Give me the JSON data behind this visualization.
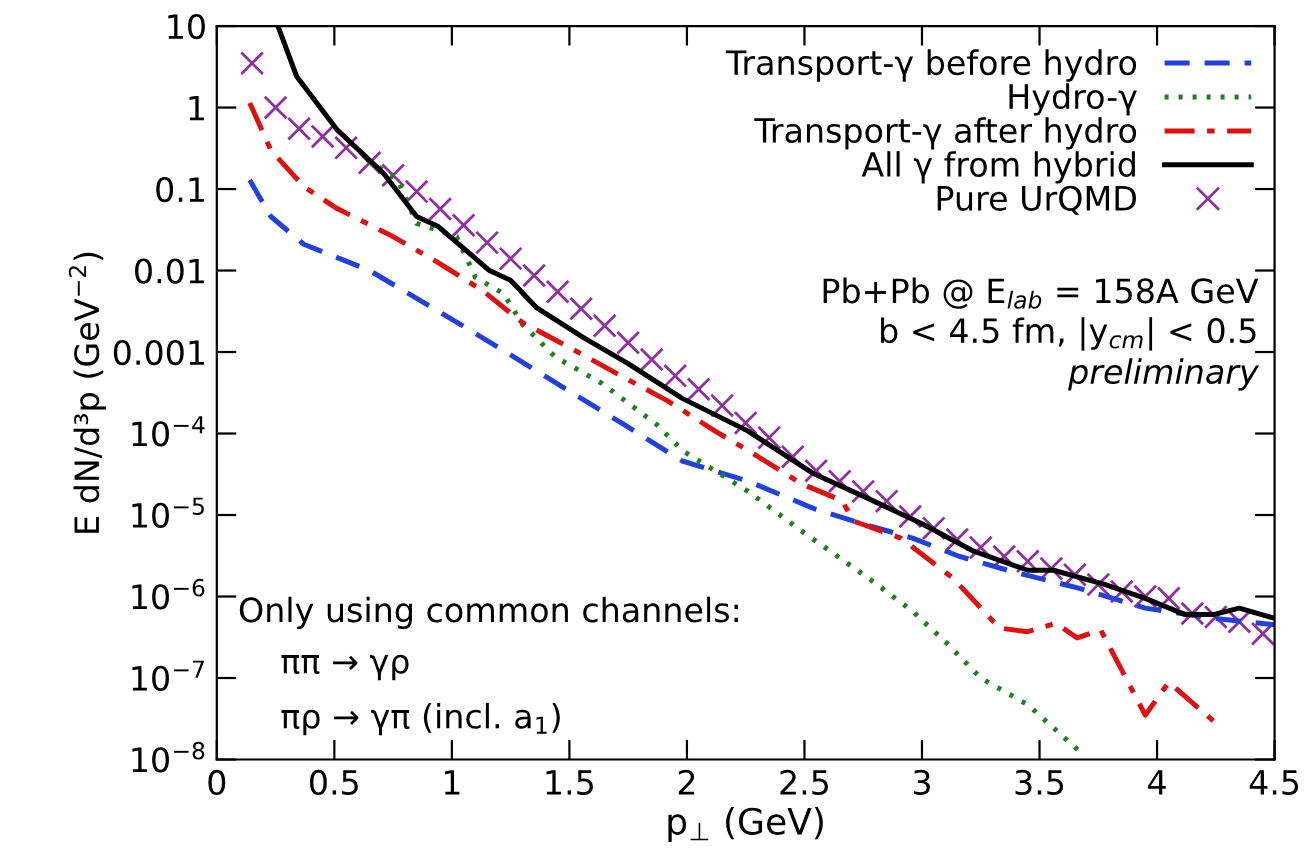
{
  "chart_data": {
    "type": "line",
    "xlabel": "p$_{⊥}$ (GeV)",
    "ylabel": "E dN/d³p (GeV$^{−2}$)",
    "log": "y",
    "xlim": [
      0,
      4.5
    ],
    "ylim": [
      1e-08,
      10
    ],
    "xticks": [
      0,
      0.5,
      1,
      1.5,
      2,
      2.5,
      3,
      3.5,
      4,
      4.5
    ],
    "yticks": [
      {
        "value": 1e-08,
        "label": "10$^{−8}$"
      },
      {
        "value": 1e-07,
        "label": "10$^{−7}$"
      },
      {
        "value": 1e-06,
        "label": "10$^{−6}$"
      },
      {
        "value": 1e-05,
        "label": "10$^{−5}$"
      },
      {
        "value": 0.0001,
        "label": "10$^{−4}$"
      },
      {
        "value": 0.001,
        "label": "0.001"
      },
      {
        "value": 0.01,
        "label": "0.01"
      },
      {
        "value": 0.1,
        "label": "0.1"
      },
      {
        "value": 1,
        "label": "1"
      },
      {
        "value": 10,
        "label": "10"
      }
    ],
    "grid": false,
    "legend": "top right",
    "series": [
      {
        "name": "Transport-γ before hydro",
        "line_style": "dashed",
        "color": "#2040e0",
        "x": [
          0.14,
          0.23,
          0.37,
          0.65,
          0.94,
          1.22,
          1.5,
          1.73,
          1.98,
          2.26,
          2.54,
          2.71,
          2.96,
          3.16,
          3.39,
          3.67,
          3.95,
          4.24,
          4.5
        ],
        "values": [
          0.129,
          0.046,
          0.021,
          0.01,
          0.0032,
          0.00104,
          0.00033,
          0.00013,
          4.6e-05,
          2.6e-05,
          1.2e-05,
          8.4e-06,
          5.2e-06,
          3.1e-06,
          2e-06,
          1.26e-06,
          7.2e-07,
          5.4e-07,
          4.5e-07
        ]
      },
      {
        "name": "Hydro-γ",
        "line_style": "dotted",
        "color": "#208020",
        "x": [
          0.64,
          0.77,
          0.85,
          1.02,
          1.1,
          1.22,
          1.3,
          1.44,
          1.64,
          1.87,
          1.98,
          2.26,
          2.49,
          2.77,
          2.96,
          3.11,
          3.25,
          3.45,
          3.67
        ],
        "values": [
          0.23,
          0.13,
          0.038,
          0.026,
          0.0083,
          0.0052,
          0.0022,
          0.00087,
          0.00041,
          0.00013,
          6.2e-05,
          1.95e-05,
          6.3e-06,
          1.7e-06,
          6.6e-07,
          2.6e-07,
          1e-07,
          4.7e-08,
          1.26e-08
        ]
      },
      {
        "name": "Transport-γ after hydro",
        "line_style": "dashdot",
        "color": "#e01010",
        "x": [
          0.14,
          0.23,
          0.37,
          0.51,
          0.74,
          0.94,
          1.13,
          1.3,
          1.5,
          1.73,
          1.92,
          2.12,
          2.26,
          2.49,
          2.66,
          2.71,
          2.91,
          3.13,
          3.33,
          3.45,
          3.57,
          3.66,
          3.76,
          3.95,
          4.05,
          4.25
        ],
        "values": [
          1.14,
          0.3,
          0.107,
          0.058,
          0.027,
          0.0126,
          0.0057,
          0.0023,
          0.00114,
          0.00049,
          0.00025,
          0.000107,
          6.2e-05,
          2.4e-05,
          1.5e-05,
          8.4e-06,
          5.2e-06,
          1.7e-06,
          4.1e-07,
          3.7e-07,
          4.7e-07,
          3.1e-07,
          3.9e-07,
          3.5e-08,
          8.9e-08,
          2.8e-08
        ]
      },
      {
        "name": "All γ from hybrid",
        "line_style": "solid",
        "color": "#000000",
        "x": [
          0.26,
          0.34,
          0.51,
          0.71,
          0.85,
          0.94,
          1.16,
          1.25,
          1.36,
          1.56,
          1.75,
          1.98,
          2.26,
          2.54,
          2.77,
          3.0,
          3.22,
          3.45,
          3.56,
          3.78,
          3.95,
          4.12,
          4.24,
          4.35,
          4.5
        ],
        "values": [
          10,
          2.4,
          0.54,
          0.155,
          0.046,
          0.035,
          0.01,
          0.0076,
          0.0035,
          0.0015,
          0.00072,
          0.00027,
          0.000107,
          3.2e-05,
          1.6e-05,
          7.8e-06,
          3.6e-06,
          2.1e-06,
          2.1e-06,
          1.4e-06,
          9.5e-07,
          6e-07,
          6e-07,
          7.2e-07,
          5.4e-07
        ]
      },
      {
        "name": "Pure UrQMD",
        "type": "scatter",
        "marker": "cross",
        "color": "#9030a0",
        "x": [
          0.15,
          0.25,
          0.35,
          0.45,
          0.55,
          0.65,
          0.75,
          0.85,
          0.95,
          1.05,
          1.15,
          1.25,
          1.35,
          1.45,
          1.55,
          1.65,
          1.75,
          1.85,
          1.95,
          2.05,
          2.15,
          2.25,
          2.35,
          2.45,
          2.55,
          2.65,
          2.75,
          2.85,
          2.95,
          3.05,
          3.15,
          3.25,
          3.35,
          3.45,
          3.55,
          3.65,
          3.75,
          3.85,
          3.95,
          4.05,
          4.15,
          4.25,
          4.35,
          4.45
        ],
        "values": [
          3.5,
          1.0,
          0.55,
          0.44,
          0.32,
          0.21,
          0.148,
          0.093,
          0.057,
          0.036,
          0.022,
          0.014,
          0.0087,
          0.0055,
          0.0034,
          0.0021,
          0.0013,
          0.00081,
          0.00051,
          0.00035,
          0.00022,
          0.000135,
          8.9e-05,
          5.2e-05,
          3.5e-05,
          2.6e-05,
          1.95e-05,
          1.48e-05,
          9.6e-06,
          6.9e-06,
          5e-06,
          4e-06,
          3.1e-06,
          2.7e-06,
          2.2e-06,
          1.85e-06,
          1.4e-06,
          1.15e-06,
          1e-06,
          9.5e-07,
          6.2e-07,
          5.6e-07,
          4.9e-07,
          3.5e-07
        ]
      }
    ],
    "annotations": [
      "Pb+Pb @ E$_{lab}$ = 158A GeV",
      "b < 4.5 fm, |y$_{cm}$| < 0.5",
      "preliminary",
      "Only using common channels:",
      "ππ → γρ",
      "πρ → γπ (incl. a$_{1}$)"
    ]
  }
}
